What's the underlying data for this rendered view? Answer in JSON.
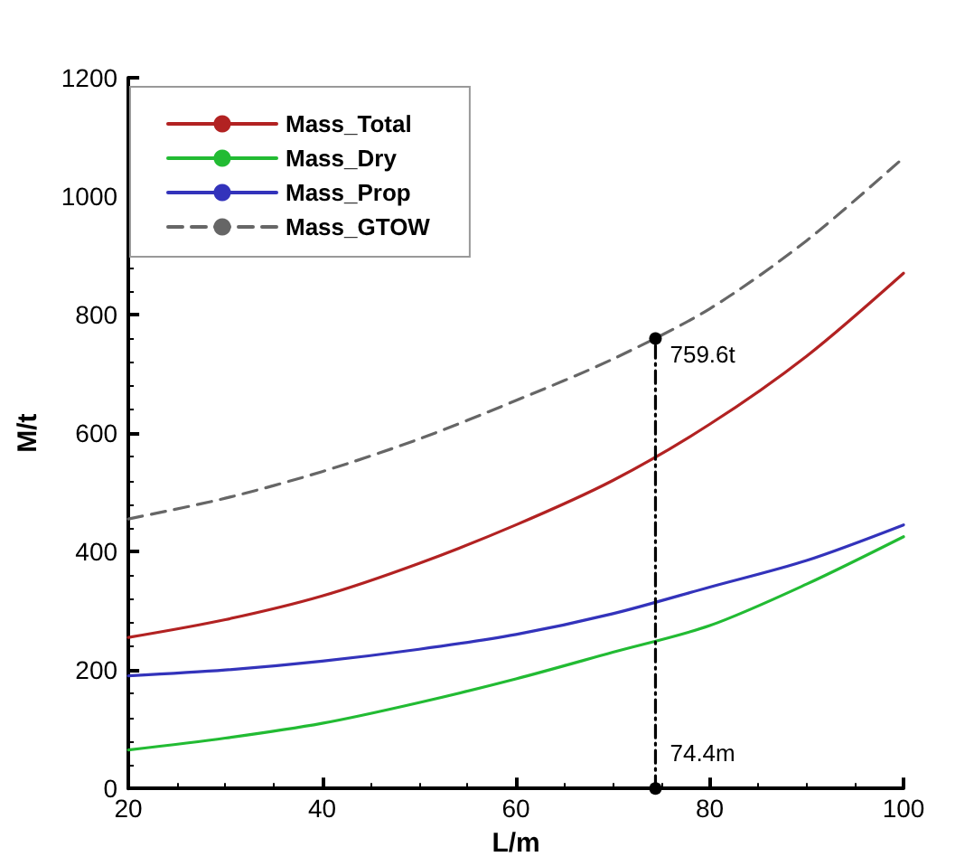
{
  "chart_data": {
    "type": "line",
    "xlabel": "L/m",
    "ylabel": "M/t",
    "x": [
      20,
      30,
      40,
      50,
      60,
      70,
      80,
      90,
      100
    ],
    "xlim": [
      20,
      100
    ],
    "xticks": [
      20,
      40,
      60,
      80,
      100
    ],
    "ylim": [
      0,
      1200
    ],
    "yticks": [
      0,
      200,
      400,
      600,
      800,
      1000,
      1200
    ],
    "grid": false,
    "legend": "top left",
    "marker": "none",
    "series": [
      {
        "name": "Mass_Total",
        "color": "#b22222",
        "values": [
          255,
          285,
          325,
          380,
          445,
          520,
          615,
          730,
          870
        ]
      },
      {
        "name": "Mass_Dry",
        "color": "#22bb33",
        "values": [
          65,
          85,
          110,
          145,
          185,
          230,
          275,
          345,
          425
        ]
      },
      {
        "name": "Mass_Prop",
        "color": "#3333bb",
        "values": [
          190,
          200,
          215,
          235,
          260,
          295,
          340,
          385,
          445
        ]
      },
      {
        "name": "Mass_GTOW",
        "color": "#666666",
        "line_style": "dashed",
        "values": [
          455,
          490,
          535,
          590,
          655,
          725,
          810,
          925,
          1065
        ]
      },
      {
        "color": "#000000",
        "line_style": "dotted",
        "marker": "circle",
        "x": [
          74.4,
          74.4
        ],
        "values": [
          0,
          759.6
        ]
      }
    ],
    "annotations": [
      {
        "text": "759.6t",
        "x": 74.4,
        "y": 759.6
      },
      {
        "text": "74.4m",
        "x": 74.4,
        "y": 0
      }
    ]
  }
}
